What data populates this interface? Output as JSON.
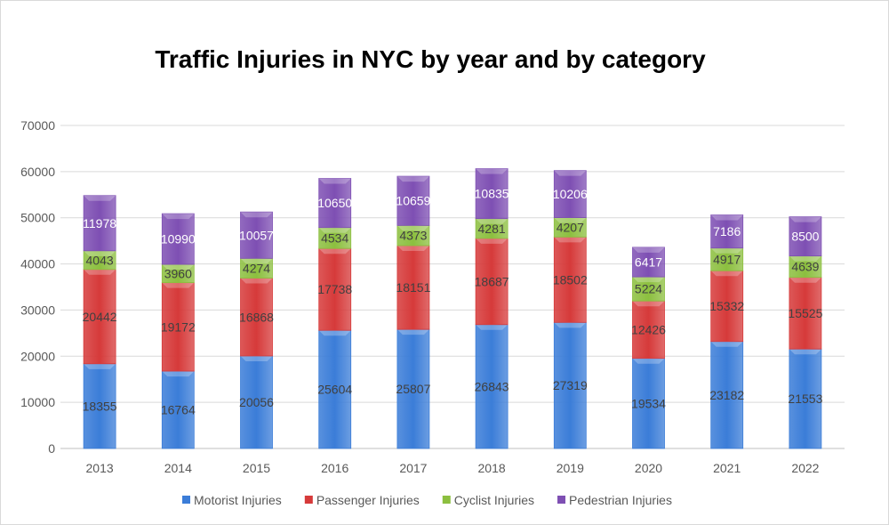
{
  "chart_data": {
    "type": "bar",
    "stacked": true,
    "title": "Traffic Injuries in NYC by year and by category",
    "xlabel": "",
    "ylabel": "",
    "ylim": [
      0,
      70000
    ],
    "yticks": [
      0,
      10000,
      20000,
      30000,
      40000,
      50000,
      60000,
      70000
    ],
    "grid": true,
    "legend_position": "bottom",
    "categories": [
      "2013",
      "2014",
      "2015",
      "2016",
      "2017",
      "2018",
      "2019",
      "2020",
      "2021",
      "2022"
    ],
    "series": [
      {
        "name": "Motorist Injuries",
        "color": "#3b7dd8",
        "values": [
          18355,
          16764,
          20056,
          25604,
          25807,
          26843,
          27319,
          19534,
          23182,
          21553
        ]
      },
      {
        "name": "Passenger Injuries",
        "color": "#d63a3a",
        "values": [
          20442,
          19172,
          16868,
          17738,
          18151,
          18687,
          18502,
          12426,
          15332,
          15525
        ]
      },
      {
        "name": "Cyclist Injuries",
        "color": "#8cbf3f",
        "values": [
          4043,
          3960,
          4274,
          4534,
          4373,
          4281,
          4207,
          5224,
          4917,
          4639
        ]
      },
      {
        "name": "Pedestrian Injuries",
        "color": "#7e4fb3",
        "values": [
          11978,
          10990,
          10057,
          10650,
          10659,
          10835,
          10206,
          6417,
          7186,
          8500
        ]
      }
    ],
    "label_colors": [
      "#404040",
      "#404040",
      "#404040",
      "#ffffff"
    ]
  }
}
